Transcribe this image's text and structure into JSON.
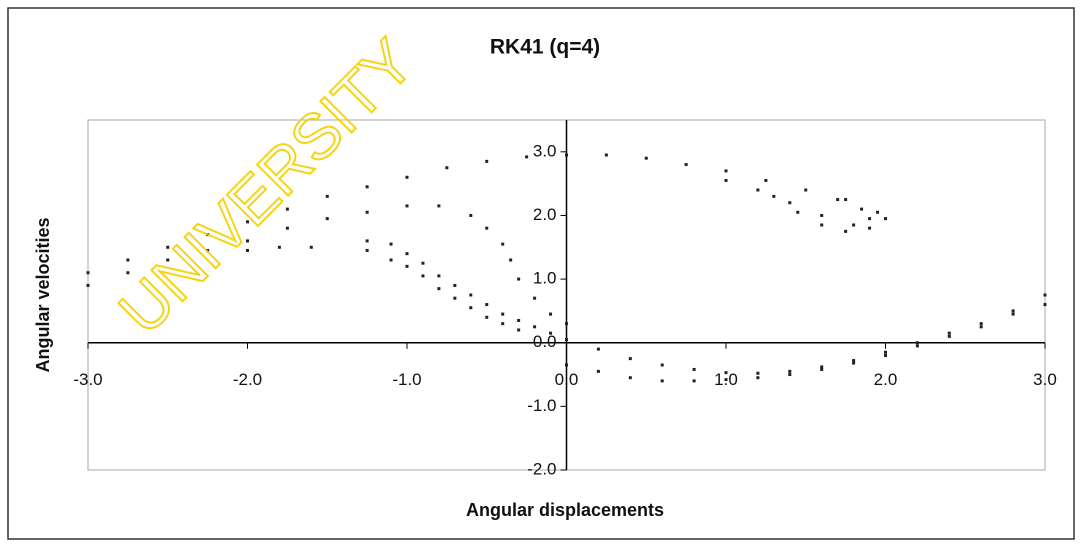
{
  "chart_data": {
    "type": "scatter",
    "title": "RK41 (q=4)",
    "x_label": "Angular displacements",
    "y_label": "Angular velocities",
    "watermark": "UNIVERSITY",
    "xlim": [
      -3,
      3
    ],
    "ylim": [
      -2,
      3.5
    ],
    "xticks": [
      {
        "value": -3,
        "label": "-3.0"
      },
      {
        "value": -2,
        "label": "-2.0"
      },
      {
        "value": -1,
        "label": "-1.0"
      },
      {
        "value": 0,
        "label": "0.0"
      },
      {
        "value": 1,
        "label": "1.0"
      },
      {
        "value": 2,
        "label": "2.0"
      },
      {
        "value": 3,
        "label": "3.0"
      }
    ],
    "yticks": [
      {
        "value": -2,
        "label": "-2.0"
      },
      {
        "value": -1,
        "label": "-1.0"
      },
      {
        "value": 0,
        "label": "0.0"
      },
      {
        "value": 1,
        "label": "1.0"
      },
      {
        "value": 2,
        "label": "2.0"
      },
      {
        "value": 3,
        "label": "3.0"
      }
    ],
    "series": [
      {
        "color": "#222222",
        "x": [
          -3.0,
          -2.75,
          -2.5,
          -2.25,
          -2.0,
          -1.75,
          -1.5,
          -1.25,
          -1.0,
          -0.75,
          -0.5,
          -0.25,
          0,
          0.25,
          0.5,
          0.75,
          1.0,
          1.25,
          1.5,
          1.75,
          1.95,
          2.0,
          1.9,
          1.75,
          1.6,
          1.45,
          1.3
        ],
        "values": [
          1.1,
          1.3,
          1.5,
          1.7,
          1.9,
          2.1,
          2.3,
          2.45,
          2.6,
          2.75,
          2.85,
          2.92,
          2.95,
          2.95,
          2.9,
          2.8,
          2.7,
          2.55,
          2.4,
          2.25,
          2.05,
          1.95,
          1.8,
          1.75,
          1.85,
          2.05,
          2.3
        ]
      },
      {
        "color": "#222222",
        "x": [
          -3.0,
          -2.75,
          -2.5,
          -2.25,
          -2.0,
          -1.75,
          -1.5,
          -1.25,
          -1.0,
          -0.8,
          -0.6,
          -0.5,
          -0.4,
          -0.35,
          -0.3,
          -0.2,
          -0.1,
          0.0
        ],
        "values": [
          0.9,
          1.1,
          1.3,
          1.45,
          1.6,
          1.8,
          1.95,
          2.05,
          2.15,
          2.15,
          2.0,
          1.8,
          1.55,
          1.3,
          1.0,
          0.7,
          0.45,
          0.3
        ]
      },
      {
        "color": "#222222",
        "x": [
          -2.0,
          -1.8,
          -1.6,
          -1.25,
          -1.1,
          -1.0,
          -0.9,
          -0.8,
          -0.7,
          -0.6,
          -0.5,
          -0.4,
          -0.3,
          -0.2,
          -0.1,
          0.0,
          0.2,
          0.4,
          0.6,
          0.8,
          1.0,
          1.2,
          1.4,
          1.6,
          1.8,
          2.0,
          2.2,
          2.4,
          2.6,
          2.8,
          3.0
        ],
        "values": [
          1.45,
          1.5,
          1.5,
          1.6,
          1.55,
          1.4,
          1.25,
          1.05,
          0.9,
          0.75,
          0.6,
          0.45,
          0.35,
          0.25,
          0.15,
          0.05,
          -0.1,
          -0.25,
          -0.35,
          -0.42,
          -0.47,
          -0.48,
          -0.45,
          -0.38,
          -0.28,
          -0.15,
          0.0,
          0.15,
          0.3,
          0.5,
          0.75
        ]
      },
      {
        "color": "#222222",
        "x": [
          -1.25,
          -1.1,
          -1.0,
          -0.9,
          -0.8,
          -0.7,
          -0.6,
          -0.5,
          -0.4,
          -0.3,
          0.0,
          0.2,
          0.4,
          0.6,
          0.8,
          1.0,
          1.2,
          1.4,
          1.6,
          1.8,
          2.0,
          2.2,
          2.4,
          2.6,
          2.8,
          3.0
        ],
        "values": [
          1.45,
          1.3,
          1.2,
          1.05,
          0.85,
          0.7,
          0.55,
          0.4,
          0.3,
          0.2,
          -0.35,
          -0.45,
          -0.55,
          -0.6,
          -0.6,
          -0.58,
          -0.55,
          -0.5,
          -0.42,
          -0.32,
          -0.2,
          -0.05,
          0.1,
          0.25,
          0.45,
          0.6
        ]
      },
      {
        "color": "#222222",
        "x": [
          1.0,
          1.2,
          1.4,
          1.6,
          1.8,
          1.9,
          1.85,
          1.7
        ],
        "values": [
          2.55,
          2.4,
          2.2,
          2.0,
          1.85,
          1.95,
          2.1,
          2.25
        ]
      }
    ]
  }
}
